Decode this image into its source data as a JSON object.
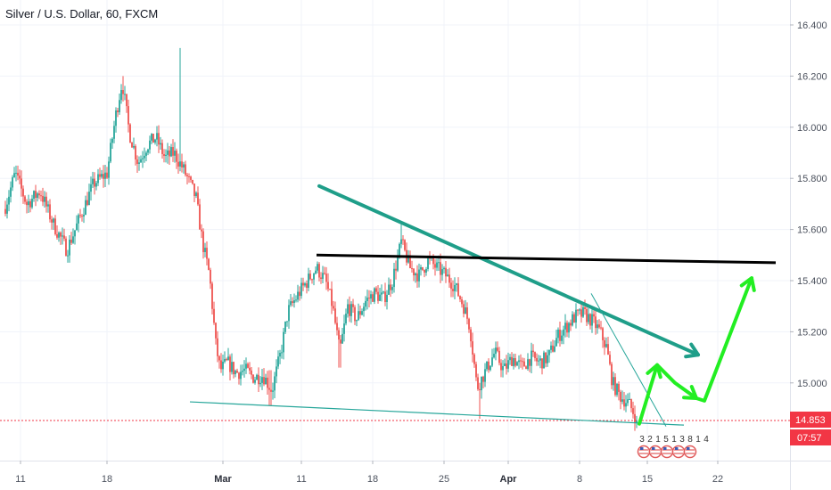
{
  "header": {
    "title": "Silver / U.S. Dollar, 60, FXCM"
  },
  "badges": {
    "last_price": "14.853",
    "countdown": "07:57"
  },
  "event_digits": [
    "3",
    "2",
    "1",
    "5",
    "1",
    "3",
    "8",
    "1",
    "4"
  ],
  "colors": {
    "up": "#26a69a",
    "down": "#ef5350",
    "teal_line": "#1f9e89",
    "support_line": "#26a69a",
    "black_line": "#000000",
    "projection": "#22ee22",
    "last_price": "#f23645",
    "countdown_bg": "#f23645",
    "grid": "#f0f3fa",
    "axis": "#e0e3eb"
  },
  "chart_data": {
    "type": "candlestick",
    "symbol": "Silver / U.S. Dollar",
    "interval": "60",
    "source": "FXCM",
    "ylim": [
      14.6,
      16.5
    ],
    "y_ticks": [
      "16.400",
      "16.200",
      "16.000",
      "15.800",
      "15.600",
      "15.400",
      "15.200",
      "15.000"
    ],
    "x_ticks": [
      {
        "label": "11",
        "bar": 3,
        "major": false
      },
      {
        "label": "18",
        "bar": 100,
        "major": false
      },
      {
        "label": "Mar",
        "bar": 230,
        "major": true
      },
      {
        "label": "11",
        "bar": 318,
        "major": false
      },
      {
        "label": "18",
        "bar": 398,
        "major": false
      },
      {
        "label": "25",
        "bar": 478,
        "major": false
      },
      {
        "label": "Apr",
        "bar": 550,
        "major": true
      },
      {
        "label": "8",
        "bar": 630,
        "major": false
      },
      {
        "label": "15",
        "bar": 706,
        "major": false
      },
      {
        "label": "22",
        "bar": 785,
        "major": false
      }
    ],
    "last_price": 14.853,
    "close_anchors": [
      [
        0,
        15.68
      ],
      [
        12,
        15.82
      ],
      [
        25,
        15.7
      ],
      [
        40,
        15.75
      ],
      [
        55,
        15.62
      ],
      [
        70,
        15.52
      ],
      [
        85,
        15.65
      ],
      [
        100,
        15.78
      ],
      [
        115,
        15.82
      ],
      [
        125,
        16.05
      ],
      [
        132,
        16.18
      ],
      [
        140,
        15.98
      ],
      [
        150,
        15.86
      ],
      [
        160,
        15.93
      ],
      [
        170,
        15.96
      ],
      [
        180,
        15.88
      ],
      [
        190,
        15.9
      ],
      [
        200,
        15.84
      ],
      [
        208,
        15.78
      ],
      [
        215,
        15.72
      ],
      [
        222,
        15.55
      ],
      [
        230,
        15.42
      ],
      [
        237,
        15.15
      ],
      [
        242,
        15.05
      ],
      [
        250,
        15.08
      ],
      [
        260,
        15.04
      ],
      [
        270,
        15.05
      ],
      [
        280,
        15.02
      ],
      [
        290,
        15.03
      ],
      [
        300,
        14.97
      ],
      [
        310,
        15.12
      ],
      [
        318,
        15.28
      ],
      [
        330,
        15.35
      ],
      [
        340,
        15.4
      ],
      [
        350,
        15.45
      ],
      [
        360,
        15.4
      ],
      [
        368,
        15.3
      ],
      [
        376,
        15.12
      ],
      [
        385,
        15.3
      ],
      [
        395,
        15.25
      ],
      [
        405,
        15.32
      ],
      [
        415,
        15.35
      ],
      [
        425,
        15.33
      ],
      [
        435,
        15.4
      ],
      [
        445,
        15.55
      ],
      [
        455,
        15.45
      ],
      [
        465,
        15.42
      ],
      [
        475,
        15.48
      ],
      [
        485,
        15.45
      ],
      [
        495,
        15.42
      ],
      [
        505,
        15.38
      ],
      [
        515,
        15.3
      ],
      [
        522,
        15.22
      ],
      [
        530,
        14.98
      ],
      [
        540,
        15.05
      ],
      [
        550,
        15.12
      ],
      [
        560,
        15.05
      ],
      [
        570,
        15.1
      ],
      [
        580,
        15.06
      ],
      [
        590,
        15.1
      ],
      [
        600,
        15.08
      ],
      [
        610,
        15.1
      ],
      [
        620,
        15.18
      ],
      [
        630,
        15.22
      ],
      [
        640,
        15.26
      ],
      [
        650,
        15.27
      ],
      [
        660,
        15.24
      ],
      [
        668,
        15.2
      ],
      [
        675,
        15.14
      ],
      [
        682,
        15.0
      ],
      [
        690,
        14.95
      ],
      [
        700,
        14.92
      ],
      [
        706,
        14.88
      ],
      [
        710,
        14.853
      ]
    ],
    "spikes": [
      {
        "bar": 197,
        "high": 16.31
      },
      {
        "bar": 133,
        "high": 16.2
      },
      {
        "bar": 14,
        "high": 15.85
      },
      {
        "bar": 298,
        "high": 15.05,
        "low": 14.91
      },
      {
        "bar": 533,
        "high": 15.0,
        "low": 14.86
      },
      {
        "bar": 376,
        "low": 15.06
      },
      {
        "bar": 445,
        "high": 15.62
      },
      {
        "bar": 648,
        "high": 15.31
      },
      {
        "bar": 72,
        "low": 15.47
      }
    ],
    "annotations": [
      {
        "type": "trendline",
        "color": "teal",
        "from": {
          "bar": 353,
          "price": 15.77
        },
        "to": {
          "bar": 778,
          "price": 15.11
        }
      },
      {
        "type": "horizontal_line",
        "color": "black",
        "from": {
          "bar": 350,
          "price": 15.5
        },
        "to": {
          "bar": 865,
          "price": 15.47
        }
      },
      {
        "type": "support_line",
        "color": "teal",
        "from": {
          "bar": 208,
          "price": 14.926
        },
        "to": {
          "bar": 762,
          "price": 14.835
        }
      },
      {
        "type": "thin_line",
        "color": "teal",
        "from": {
          "bar": 658,
          "price": 15.35
        },
        "to": {
          "bar": 742,
          "price": 14.83
        }
      },
      {
        "type": "projection_path",
        "color": "green",
        "points": [
          {
            "bar": 712,
            "price": 14.84
          },
          {
            "bar": 732,
            "price": 15.07
          },
          {
            "bar": 752,
            "price": 15.0
          },
          {
            "bar": 776,
            "price": 14.94
          },
          {
            "bar": 785,
            "price": 14.93
          },
          {
            "bar": 838,
            "price": 15.41
          }
        ],
        "arrowheads_at": [
          1,
          3,
          5
        ]
      }
    ]
  }
}
